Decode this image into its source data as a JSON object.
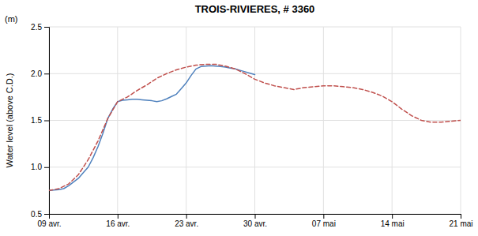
{
  "chart_data": {
    "type": "line",
    "title": "TROIS-RIVIERES, # 3360",
    "ylabel": "Water level (above C.D.)",
    "annotations": [
      "(m)"
    ],
    "xlim": [
      0,
      42
    ],
    "xticks": [
      {
        "value": 0,
        "label": "09 avr."
      },
      {
        "value": 7,
        "label": "16 avr."
      },
      {
        "value": 14,
        "label": "23 avr."
      },
      {
        "value": 21,
        "label": "30 avr."
      },
      {
        "value": 28,
        "label": "07 mai"
      },
      {
        "value": 35,
        "label": "14 mai"
      },
      {
        "value": 42,
        "label": "21 mai"
      }
    ],
    "ylim": [
      0.5,
      2.5
    ],
    "yticks": [
      0.5,
      {
        "value": 1.0,
        "label": "1.0"
      },
      1.5,
      {
        "value": 2.0,
        "label": "2.0"
      },
      2.5
    ],
    "grid": true,
    "series": [
      {
        "color": "#4f81bd",
        "line_style": "solid",
        "x": [
          0,
          0.5,
          1,
          1.5,
          2,
          2.5,
          3,
          3.5,
          4,
          4.5,
          5,
          5.5,
          6,
          6.5,
          7,
          7.5,
          8,
          8.5,
          9,
          9.5,
          10,
          10.5,
          11,
          11.5,
          12,
          12.5,
          13,
          13.5,
          14,
          14.5,
          15,
          15.5,
          16,
          16.5,
          17,
          17.5,
          18,
          18.5,
          19,
          19.5,
          20,
          20.5,
          21
        ],
        "values": [
          0.75,
          0.755,
          0.76,
          0.77,
          0.8,
          0.84,
          0.88,
          0.94,
          1.0,
          1.1,
          1.22,
          1.36,
          1.52,
          1.62,
          1.7,
          1.715,
          1.72,
          1.725,
          1.725,
          1.72,
          1.715,
          1.71,
          1.7,
          1.71,
          1.73,
          1.755,
          1.78,
          1.84,
          1.9,
          1.98,
          2.05,
          2.075,
          2.08,
          2.085,
          2.08,
          2.075,
          2.07,
          2.06,
          2.05,
          2.035,
          2.02,
          2.005,
          1.99
        ]
      },
      {
        "color": "#c0504d",
        "line_style": "dashed",
        "x": [
          0,
          1,
          2,
          3,
          4,
          5,
          6,
          7,
          8,
          9,
          10,
          11,
          12,
          13,
          14,
          15,
          16,
          17,
          18,
          19,
          20,
          21,
          22,
          23,
          24,
          25,
          26,
          27,
          28,
          29,
          30,
          31,
          32,
          33,
          34,
          35,
          36,
          37,
          38,
          39,
          40,
          41,
          42
        ],
        "values": [
          0.75,
          0.77,
          0.82,
          0.92,
          1.08,
          1.28,
          1.52,
          1.7,
          1.75,
          1.82,
          1.88,
          1.95,
          2.0,
          2.04,
          2.07,
          2.09,
          2.1,
          2.1,
          2.08,
          2.05,
          2.0,
          1.94,
          1.9,
          1.87,
          1.85,
          1.83,
          1.85,
          1.86,
          1.87,
          1.87,
          1.86,
          1.85,
          1.83,
          1.8,
          1.76,
          1.7,
          1.62,
          1.55,
          1.5,
          1.48,
          1.48,
          1.49,
          1.5
        ]
      }
    ]
  }
}
